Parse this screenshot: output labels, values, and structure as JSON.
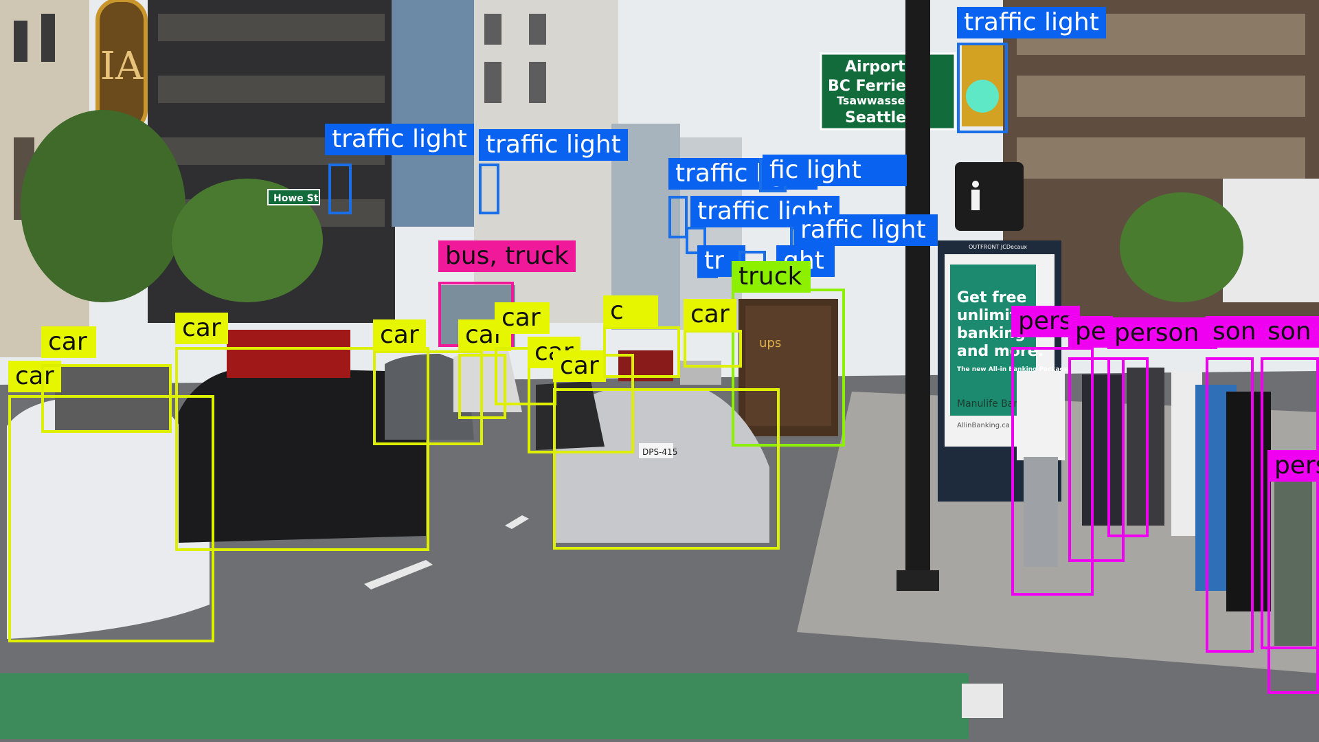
{
  "classes": {
    "car": {
      "border": "#dcf000",
      "label_bg": "#e6f500",
      "label_fg": "#111111"
    },
    "traffic light": {
      "border": "#1a6fe8",
      "label_bg": "#0a62f0",
      "label_fg": "#ffffff"
    },
    "bus, truck": {
      "border": "#f0199a",
      "label_bg": "#f0199a",
      "label_fg": "#111111"
    },
    "truck": {
      "border": "#8cf000",
      "label_bg": "#8cf000",
      "label_fg": "#111111"
    },
    "person": {
      "border": "#f000f0",
      "label_bg": "#f000f0",
      "label_fg": "#111111"
    }
  },
  "detections": [
    {
      "label": "traffic light",
      "text": "traffic light"
    },
    {
      "label": "traffic light",
      "text": "traffic light"
    },
    {
      "label": "traffic light",
      "text": "traffic light"
    },
    {
      "label": "traffic light",
      "text": "traffic light"
    },
    {
      "label": "traffic light",
      "text": "fic light"
    },
    {
      "label": "traffic light",
      "text": "traffic light"
    },
    {
      "label": "traffic light",
      "text": "raffic light"
    },
    {
      "label": "traffic light",
      "text": "tr"
    },
    {
      "label": "traffic light",
      "text": "ght"
    },
    {
      "label": "bus, truck",
      "text": "bus, truck"
    },
    {
      "label": "truck",
      "text": "truck"
    },
    {
      "label": "car",
      "text": "car"
    },
    {
      "label": "car",
      "text": "car"
    },
    {
      "label": "car",
      "text": "car"
    },
    {
      "label": "car",
      "text": "car"
    },
    {
      "label": "car",
      "text": "car"
    },
    {
      "label": "car",
      "text": "car"
    },
    {
      "label": "car",
      "text": "car"
    },
    {
      "label": "car",
      "text": "car"
    },
    {
      "label": "car",
      "text": "c"
    },
    {
      "label": "car",
      "text": "car"
    },
    {
      "label": "person",
      "text": "pers"
    },
    {
      "label": "person",
      "text": "pe"
    },
    {
      "label": "person",
      "text": "person"
    },
    {
      "label": "person",
      "text": "son"
    },
    {
      "label": "person",
      "text": "son"
    },
    {
      "label": "person",
      "text": "pers"
    }
  ],
  "scene_text": {
    "street_sign": "Howe St",
    "direction_sign": [
      "Airport",
      "BC Ferries",
      "Tsawwassen",
      "Seattle"
    ],
    "hotel_sign": "IA",
    "billboard": [
      "Get free",
      "unlimited",
      "banking",
      "and more."
    ],
    "billboard_small": "The new All-in Banking Package",
    "billboard_brand": "Manulife Bank",
    "billboard_url": "AllinBanking.ca",
    "billboard_top": "OUTFRONT JCDecaux",
    "truck_logo": "ups",
    "license_plate": "DPS-415"
  }
}
